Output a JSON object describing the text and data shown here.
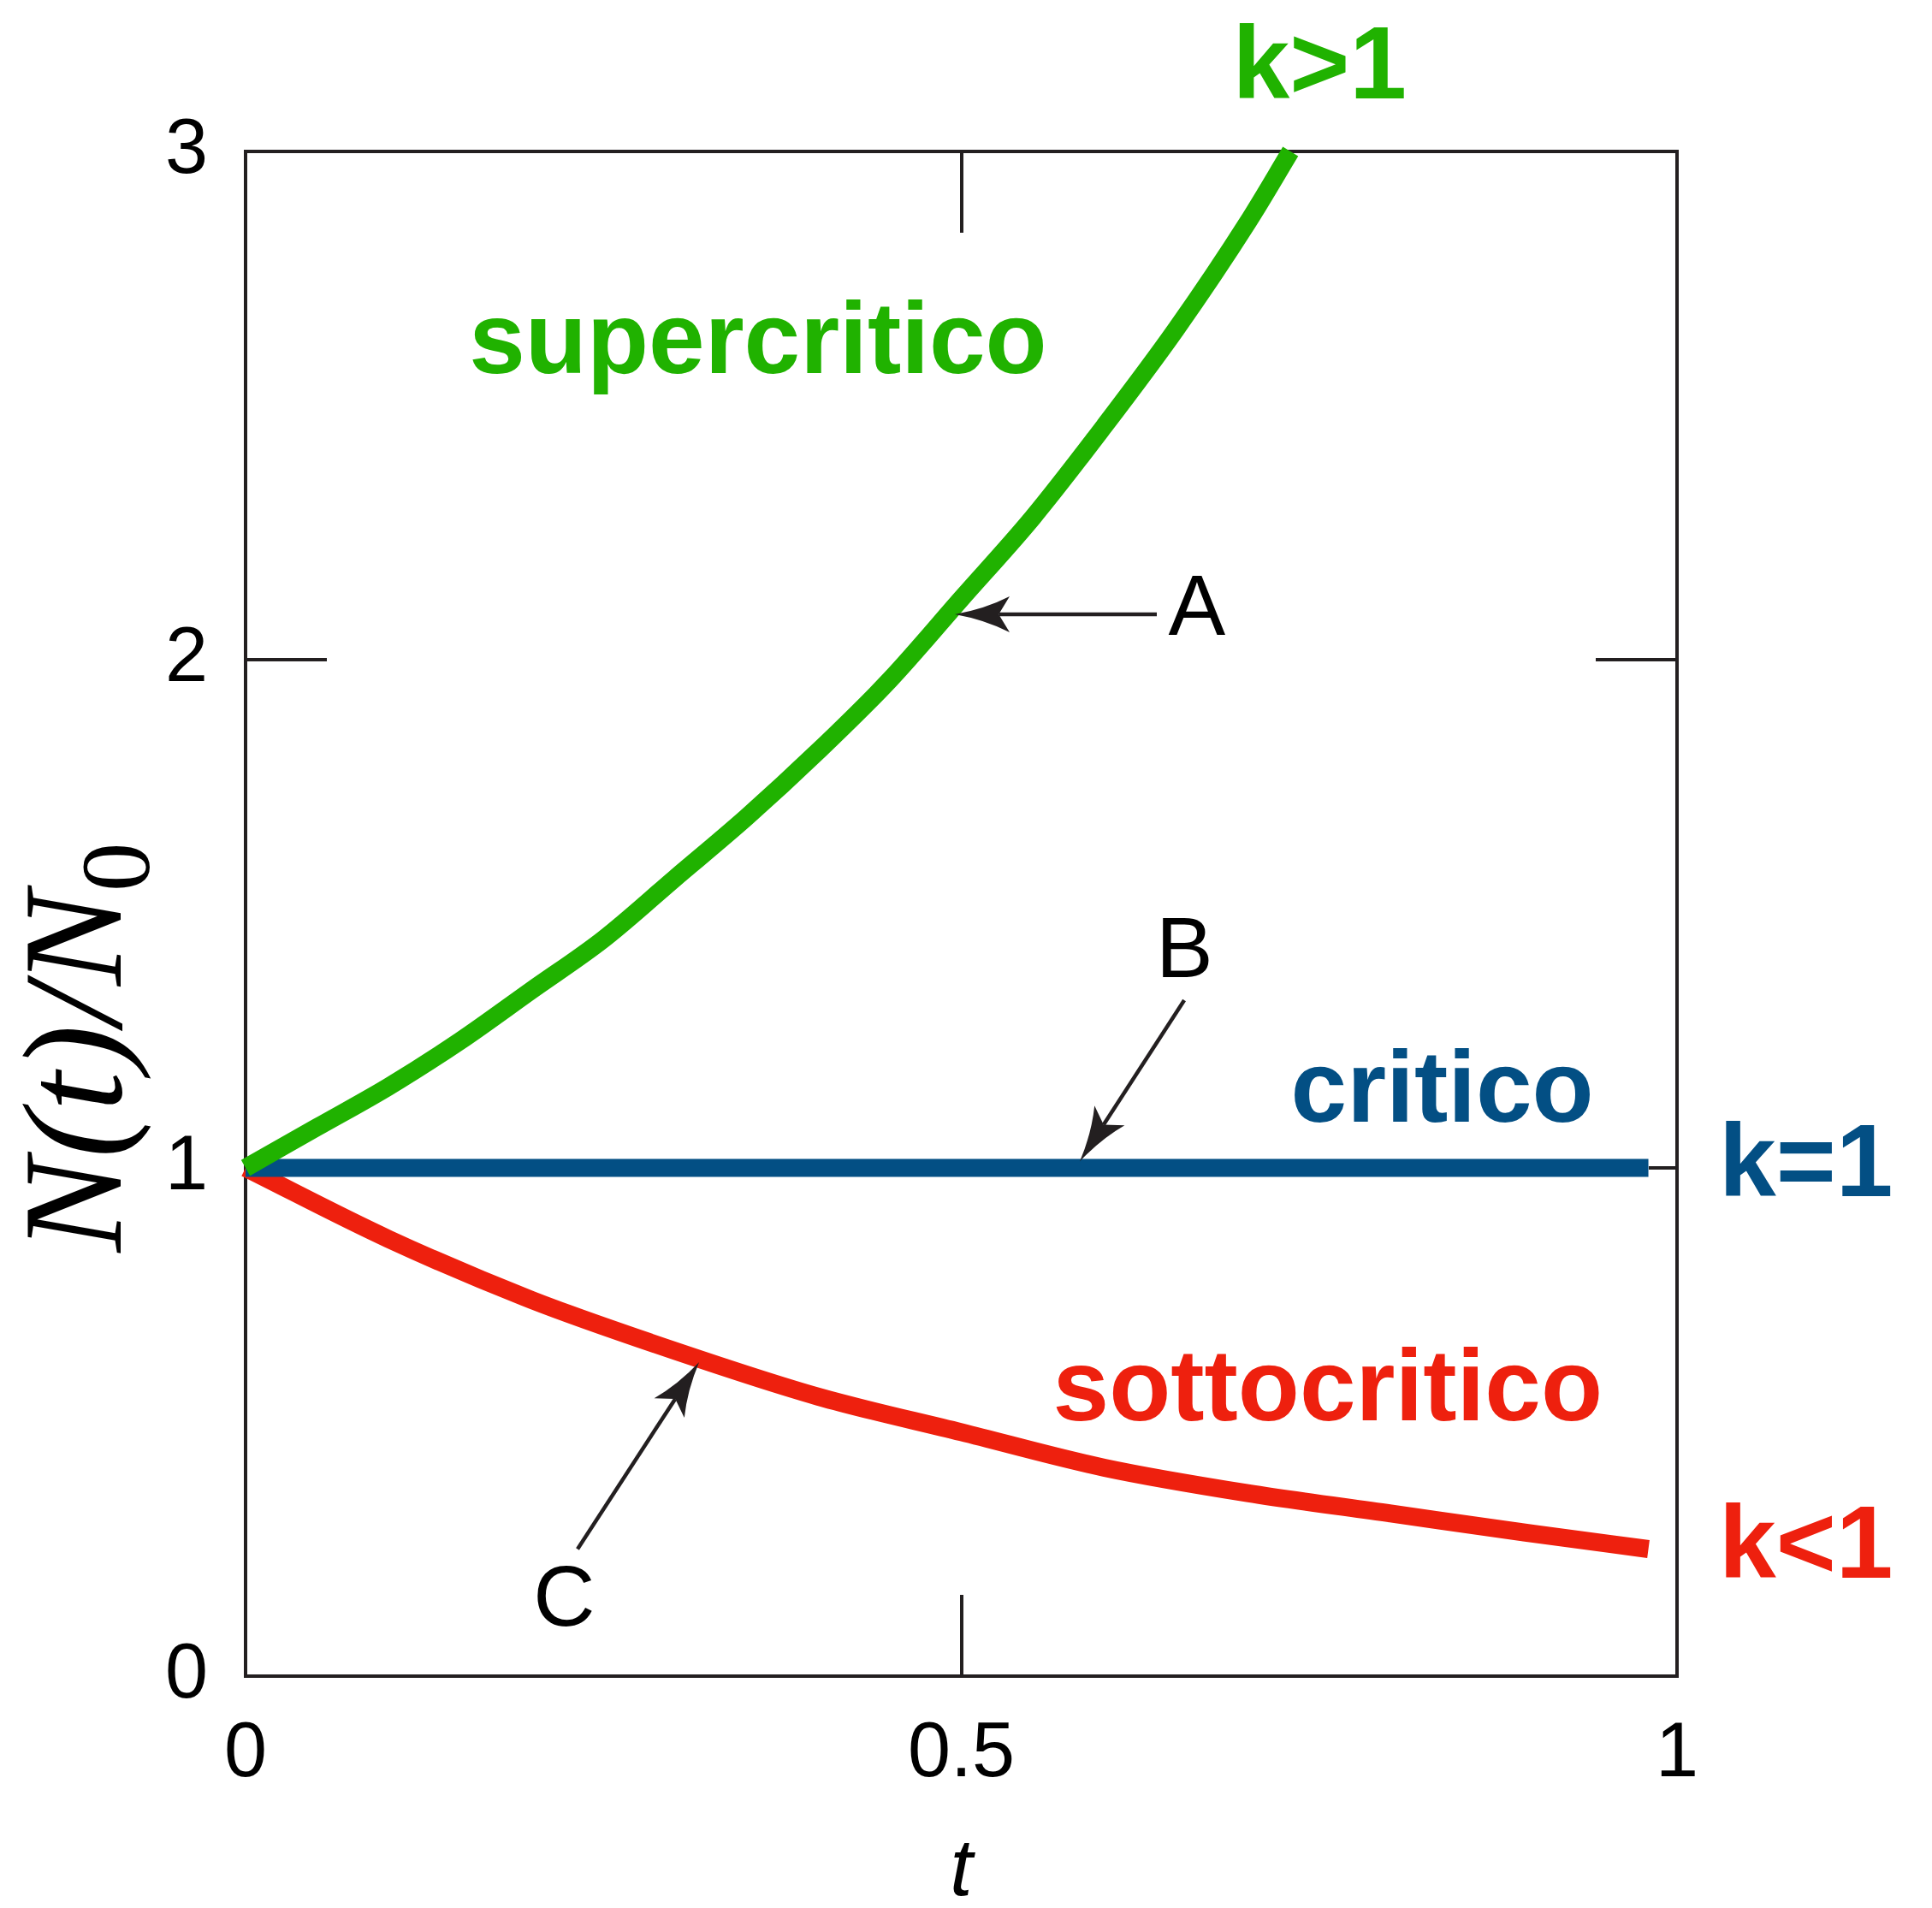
{
  "chart_data": {
    "type": "line",
    "xlabel": "t",
    "ylabel": "N(t)/N$_{0}$",
    "xlim": [
      0,
      1
    ],
    "ylim": [
      0,
      3
    ],
    "xticks": [
      0,
      0.5,
      1
    ],
    "yticks": [
      0,
      1,
      2,
      3
    ],
    "marker": "none",
    "legend": false,
    "series": [
      {
        "name": "k>1",
        "color": "#20b200",
        "x": [
          0,
          0.05,
          0.1,
          0.15,
          0.2,
          0.25,
          0.3,
          0.35,
          0.4,
          0.45,
          0.5,
          0.55,
          0.6,
          0.65,
          0.7,
          0.73
        ],
        "values": [
          1.0,
          1.08,
          1.16,
          1.25,
          1.35,
          1.45,
          1.57,
          1.69,
          1.82,
          1.96,
          2.12,
          2.28,
          2.46,
          2.65,
          2.86,
          3.0
        ]
      },
      {
        "name": "k=1",
        "color": "#034f84",
        "x": [
          0,
          0.98
        ],
        "values": [
          1,
          1
        ]
      },
      {
        "name": "k<1",
        "color": "#ee200e",
        "x": [
          0,
          0.1,
          0.2,
          0.3,
          0.4,
          0.5,
          0.6,
          0.7,
          0.8,
          0.9,
          0.98
        ],
        "values": [
          1.0,
          0.86,
          0.74,
          0.64,
          0.55,
          0.48,
          0.41,
          0.36,
          0.32,
          0.28,
          0.25
        ]
      }
    ],
    "annotations": [
      "supercritico",
      "critico",
      "sottocritico",
      {
        "text": "A",
        "x": 0.49,
        "y": 2.09
      },
      {
        "text": "B",
        "x": 0.58,
        "y": 1.0
      },
      {
        "text": "C",
        "x": 0.32,
        "y": 0.63
      }
    ]
  }
}
